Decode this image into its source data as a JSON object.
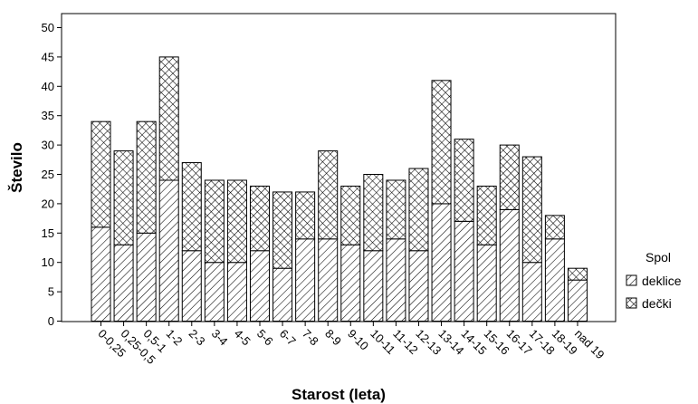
{
  "chart_data": {
    "type": "bar",
    "stacked": true,
    "title": "",
    "xlabel": "Starost (leta)",
    "ylabel": "Število",
    "ylim": [
      0,
      52
    ],
    "yticks": [
      0,
      5,
      10,
      15,
      20,
      25,
      30,
      35,
      40,
      45,
      50
    ],
    "grid": false,
    "legend": {
      "title": "Spol",
      "position": "right"
    },
    "categories": [
      "0-0,25",
      "0,25-0,5",
      "0,5-1",
      "1-2",
      "2-3",
      "3-4",
      "4-5",
      "5-6",
      "6-7",
      "7-8",
      "8-9",
      "9-10",
      "10-11",
      "11-12",
      "12-13",
      "13-14",
      "14-15",
      "15-16",
      "16-17",
      "17-18",
      "18-19",
      "nad 19"
    ],
    "series": [
      {
        "name": "deklice",
        "pattern": "diagonal-hatch",
        "values": [
          16,
          13,
          15,
          24,
          12,
          10,
          10,
          12,
          9,
          14,
          14,
          13,
          12,
          14,
          12,
          20,
          17,
          13,
          19,
          10,
          14,
          7
        ]
      },
      {
        "name": "dečki",
        "pattern": "cross-hatch",
        "values": [
          18,
          16,
          19,
          21,
          15,
          14,
          14,
          11,
          13,
          8,
          15,
          10,
          13,
          10,
          14,
          21,
          14,
          10,
          11,
          18,
          4,
          2
        ]
      }
    ]
  }
}
